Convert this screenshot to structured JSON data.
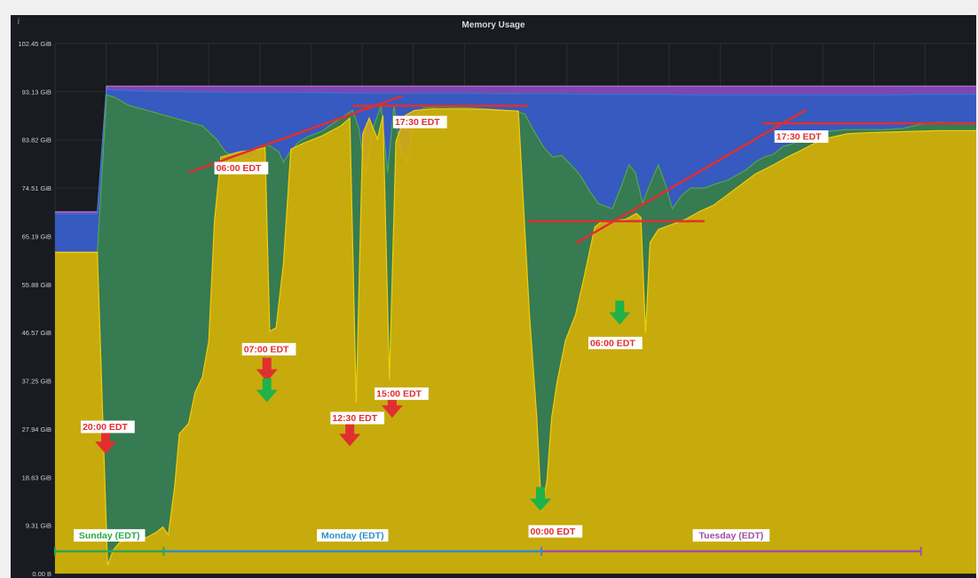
{
  "panel": {
    "title": "Memory Usage",
    "info_icon": "info-icon"
  },
  "chart_data": {
    "type": "area",
    "title": "Memory Usage",
    "xlabel": "",
    "ylabel": "",
    "ylim": [
      0,
      102.45
    ],
    "y_unit": "GiB",
    "y_ticks": [
      "0.00 B",
      "9.31 GiB",
      "18.63 GiB",
      "27.94 GiB",
      "37.25 GiB",
      "46.57 GiB",
      "55.88 GiB",
      "65.19 GiB",
      "74.51 GiB",
      "83.82 GiB",
      "93.13 GiB",
      "102.45 GiB"
    ],
    "y_tick_values": [
      0,
      9.31,
      18.63,
      27.94,
      37.25,
      46.57,
      55.88,
      65.19,
      74.51,
      83.82,
      93.13,
      102.45
    ],
    "grid": true,
    "legend": "none",
    "x_range": [
      0,
      100
    ],
    "colors": {
      "total": "#8f4fc9",
      "free": "#1f60c4",
      "buffers": "#37872d",
      "used": "#e0b400",
      "background": "#181b1f",
      "grid": "#2a2d33",
      "tick_text": "#ccccdc",
      "annotation_line": "#e02f2f",
      "label_text": "#e02f2f",
      "arrow_red": "#e02f2f",
      "arrow_green": "#1fb24a"
    },
    "series": [
      {
        "key": "total",
        "points": [
          [
            0,
            69.9
          ],
          [
            4.6,
            69.9
          ],
          [
            5.6,
            94.2
          ],
          [
            100,
            94.2
          ]
        ]
      },
      {
        "key": "free",
        "points": [
          [
            0,
            69.5
          ],
          [
            4.6,
            69.5
          ],
          [
            5.6,
            93.5
          ],
          [
            10,
            93.2
          ],
          [
            15,
            93.1
          ],
          [
            20,
            93
          ],
          [
            25,
            93
          ],
          [
            30,
            92.9
          ],
          [
            35,
            92.8
          ],
          [
            40,
            92.8
          ],
          [
            45,
            92.8
          ],
          [
            50,
            92.7
          ],
          [
            55,
            92.7
          ],
          [
            60,
            92.6
          ],
          [
            65,
            92.6
          ],
          [
            70,
            92.5
          ],
          [
            75,
            92.5
          ],
          [
            80,
            92.5
          ],
          [
            85,
            92.5
          ],
          [
            90,
            92.5
          ],
          [
            95,
            92.6
          ],
          [
            100,
            92.6
          ]
        ]
      },
      {
        "key": "buffers",
        "points": [
          [
            0,
            62
          ],
          [
            4.6,
            62
          ],
          [
            5.6,
            92.5
          ],
          [
            6.5,
            92
          ],
          [
            8,
            90.5
          ],
          [
            10,
            89.5
          ],
          [
            13,
            88
          ],
          [
            16,
            86.5
          ],
          [
            17.5,
            84
          ],
          [
            18.5,
            81.5
          ],
          [
            19.5,
            80.5
          ],
          [
            21,
            80
          ],
          [
            22,
            81
          ],
          [
            23,
            83
          ],
          [
            24.3,
            81.5
          ],
          [
            24.8,
            79.5
          ],
          [
            25.5,
            81.5
          ],
          [
            26.5,
            83.5
          ],
          [
            27.5,
            84.5
          ],
          [
            29,
            85.5
          ],
          [
            31,
            88
          ],
          [
            32.3,
            89.5
          ],
          [
            33,
            86
          ],
          [
            33.7,
            77
          ],
          [
            34.5,
            86
          ],
          [
            35.4,
            90.5
          ],
          [
            36.1,
            77.5
          ],
          [
            36.8,
            90.5
          ],
          [
            37.5,
            81.5
          ],
          [
            38.2,
            79.5
          ],
          [
            39,
            88
          ],
          [
            40,
            90
          ],
          [
            42,
            90.2
          ],
          [
            45,
            90
          ],
          [
            48,
            89.6
          ],
          [
            50,
            89.4
          ],
          [
            51,
            88.8
          ],
          [
            52,
            85.5
          ],
          [
            53,
            82.5
          ],
          [
            54,
            80.5
          ],
          [
            55,
            80.8
          ],
          [
            56,
            79
          ],
          [
            57,
            77
          ],
          [
            58,
            74
          ],
          [
            59,
            71.5
          ],
          [
            60.5,
            70.5
          ],
          [
            61.5,
            75
          ],
          [
            62.3,
            79
          ],
          [
            63,
            77.5
          ],
          [
            63.8,
            71.5
          ],
          [
            64.3,
            74
          ],
          [
            65,
            77
          ],
          [
            65.5,
            79
          ],
          [
            66.3,
            75
          ],
          [
            67,
            70.5
          ],
          [
            68,
            73
          ],
          [
            69,
            74.5
          ],
          [
            70.5,
            74.5
          ],
          [
            72,
            75.5
          ],
          [
            73,
            76
          ],
          [
            74,
            77
          ],
          [
            75,
            78
          ],
          [
            76,
            79.5
          ],
          [
            77,
            80.5
          ],
          [
            78,
            81
          ],
          [
            79,
            82.5
          ],
          [
            80,
            83
          ],
          [
            81,
            84
          ],
          [
            82,
            84.8
          ],
          [
            83,
            85
          ],
          [
            84,
            85.5
          ],
          [
            86,
            85.8
          ],
          [
            88,
            85.8
          ],
          [
            90,
            85.8
          ],
          [
            92,
            86
          ],
          [
            94,
            86.8
          ],
          [
            96,
            87.2
          ],
          [
            98,
            87
          ],
          [
            100,
            87
          ]
        ]
      },
      {
        "key": "used",
        "points": [
          [
            0,
            62.1
          ],
          [
            4.6,
            62.1
          ],
          [
            5.7,
            1.6
          ],
          [
            6.3,
            4.5
          ],
          [
            7,
            6
          ],
          [
            8,
            6.6
          ],
          [
            10,
            7
          ],
          [
            11,
            8
          ],
          [
            11.7,
            9
          ],
          [
            12.3,
            7.5
          ],
          [
            13,
            17
          ],
          [
            13.5,
            27
          ],
          [
            14.5,
            29
          ],
          [
            15.2,
            35
          ],
          [
            16,
            38
          ],
          [
            16.7,
            45
          ],
          [
            17.3,
            68
          ],
          [
            18,
            80.5
          ],
          [
            20,
            81.5
          ],
          [
            22,
            82
          ],
          [
            22.8,
            82.3
          ],
          [
            23.3,
            46.8
          ],
          [
            24,
            47.5
          ],
          [
            24.8,
            60
          ],
          [
            25.6,
            82
          ],
          [
            27,
            83.2
          ],
          [
            29,
            84.6
          ],
          [
            31,
            86.5
          ],
          [
            32,
            88
          ],
          [
            32.7,
            33
          ],
          [
            33.4,
            85
          ],
          [
            34.1,
            88
          ],
          [
            35,
            84
          ],
          [
            35.6,
            88.5
          ],
          [
            36.3,
            37.5
          ],
          [
            37,
            83.5
          ],
          [
            38,
            88.5
          ],
          [
            39,
            89.5
          ],
          [
            41,
            89.8
          ],
          [
            44,
            89.8
          ],
          [
            47,
            89.7
          ],
          [
            49,
            89.5
          ],
          [
            50.3,
            89.4
          ],
          [
            51.5,
            50
          ],
          [
            52.3,
            30
          ],
          [
            52.8,
            12
          ],
          [
            53.4,
            18
          ],
          [
            53.9,
            30
          ],
          [
            54.5,
            37
          ],
          [
            55.4,
            45
          ],
          [
            56.5,
            50
          ],
          [
            57.4,
            57
          ],
          [
            58,
            62
          ],
          [
            58.6,
            67
          ],
          [
            59.4,
            68.1
          ],
          [
            61,
            68.2
          ],
          [
            62,
            68.5
          ],
          [
            63.1,
            69.6
          ],
          [
            63.6,
            68.8
          ],
          [
            64.1,
            46.5
          ],
          [
            64.6,
            64
          ],
          [
            65.5,
            66.5
          ],
          [
            67,
            67.5
          ],
          [
            68.5,
            68.5
          ],
          [
            70,
            70
          ],
          [
            71.5,
            71.2
          ],
          [
            73,
            73.2
          ],
          [
            74.5,
            75.2
          ],
          [
            76,
            77.2
          ],
          [
            78,
            79
          ],
          [
            79.5,
            80.5
          ],
          [
            81,
            81.8
          ],
          [
            82.5,
            83.2
          ],
          [
            84,
            84.2
          ],
          [
            86,
            85
          ],
          [
            88,
            85.2
          ],
          [
            90,
            85.3
          ],
          [
            92,
            85.4
          ],
          [
            94,
            85.5
          ],
          [
            96,
            85.6
          ],
          [
            98,
            85.6
          ],
          [
            100,
            85.6
          ]
        ]
      }
    ],
    "annotations": {
      "lines": [
        {
          "from": [
            14.5,
            77.5
          ],
          "to": [
            37.7,
            92.3
          ]
        },
        {
          "from": [
            32.3,
            90.4
          ],
          "to": [
            51.3,
            90.4
          ]
        },
        {
          "from": [
            51.3,
            68.1
          ],
          "to": [
            70.5,
            68.1
          ]
        },
        {
          "from": [
            56.5,
            63.8
          ],
          "to": [
            81.5,
            89.6
          ]
        },
        {
          "from": [
            76.8,
            87
          ],
          "to": [
            100,
            87
          ]
        }
      ],
      "labels": [
        {
          "text": "06:00 EDT",
          "x": 17.3,
          "y": 77.5
        },
        {
          "text": "17:30 EDT",
          "x": 36.7,
          "y": 86.4
        },
        {
          "text": "17:30 EDT",
          "x": 78.1,
          "y": 83.6
        },
        {
          "text": "07:00 EDT",
          "x": 20.3,
          "y": 42.5
        },
        {
          "text": "12:30 EDT",
          "x": 29.9,
          "y": 29.2
        },
        {
          "text": "15:00 EDT",
          "x": 34.7,
          "y": 33.9
        },
        {
          "text": "20:00 EDT",
          "x": 2.8,
          "y": 27.5
        },
        {
          "text": "06:00 EDT",
          "x": 57.9,
          "y": 43.7
        },
        {
          "text": "00:00 EDT",
          "x": 51.4,
          "y": 7.3
        }
      ],
      "arrows": [
        {
          "color": "red",
          "x": 5.5,
          "y": 25.5
        },
        {
          "color": "red",
          "x": 23.0,
          "y": 39.5
        },
        {
          "color": "green",
          "x": 23.0,
          "y": 35.5
        },
        {
          "color": "red",
          "x": 32.0,
          "y": 27.0
        },
        {
          "color": "red",
          "x": 36.6,
          "y": 32.5
        },
        {
          "color": "green",
          "x": 52.7,
          "y": 14.5
        },
        {
          "color": "green",
          "x": 61.3,
          "y": 50.5
        }
      ],
      "timeline": {
        "days": [
          {
            "label": "Sunday (EDT)",
            "from": 0,
            "to": 11.8,
            "color": "#2ea84a"
          },
          {
            "label": "Monday (EDT)",
            "from": 11.8,
            "to": 52.8,
            "color": "#2f8fc9"
          },
          {
            "label": "Tuesday (EDT)",
            "from": 52.8,
            "to": 94.0,
            "color": "#a04fa6"
          }
        ],
        "y": 4.3
      }
    }
  }
}
